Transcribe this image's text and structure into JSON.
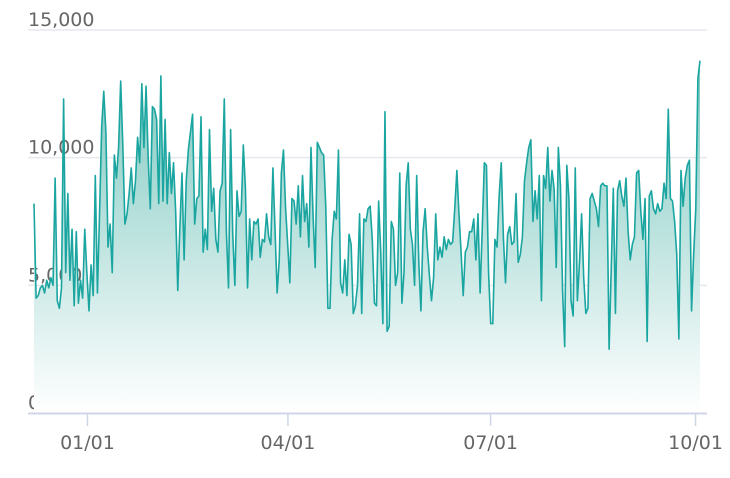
{
  "chart_data": {
    "type": "area",
    "title": "",
    "xlabel": "",
    "ylabel": "",
    "ylim": [
      0,
      15000
    ],
    "y_ticks": [
      {
        "value": 0,
        "label": "0"
      },
      {
        "value": 5000,
        "label": "5,000"
      },
      {
        "value": 10000,
        "label": "10,000"
      },
      {
        "value": 15000,
        "label": "15,000"
      }
    ],
    "x_ticks": [
      {
        "date": "2019-01-01",
        "label": "01/01"
      },
      {
        "date": "2019-04-01",
        "label": "04/01"
      },
      {
        "date": "2019-07-01",
        "label": "07/01"
      },
      {
        "date": "2019-10-01",
        "label": "10/01"
      }
    ],
    "x_range": [
      "2018-12-08",
      "2019-10-03"
    ],
    "grid": true,
    "legend": "none",
    "colors": {
      "line": "#1aa5a0",
      "fill_top": "#7cc7bf",
      "fill_bottom": "#ffffff",
      "grid": "#e6e8ef",
      "axis": "#cfd6e6",
      "tick_label": "#666666"
    },
    "series": [
      {
        "values": [
          8200,
          4500,
          4600,
          4900,
          5000,
          4700,
          5200,
          4900,
          5300,
          5000,
          9200,
          4400,
          4100,
          4900,
          12300,
          5500,
          8600,
          5200,
          7200,
          4200,
          7100,
          4300,
          5200,
          4500,
          7200,
          5500,
          4000,
          5800,
          4600,
          9300,
          4700,
          7800,
          11200,
          12600,
          11000,
          6500,
          7400,
          5500,
          10100,
          9200,
          10400,
          13000,
          10500,
          7400,
          7800,
          8600,
          9600,
          8200,
          9100,
          10800,
          9800,
          12900,
          10400,
          12800,
          10000,
          8000,
          12000,
          11900,
          11500,
          8200,
          13200,
          8300,
          11500,
          8200,
          10200,
          8600,
          9800,
          7900,
          4800,
          7300,
          9400,
          6000,
          9100,
          10300,
          11000,
          11700,
          7400,
          8400,
          8500,
          11600,
          6300,
          7200,
          6400,
          11100,
          7900,
          8800,
          6800,
          6300,
          8700,
          9000,
          12300,
          7100,
          4900,
          11100,
          7000,
          5000,
          8700,
          7700,
          7900,
          10500,
          8800,
          4900,
          7600,
          6000,
          7500,
          7400,
          7600,
          6100,
          6800,
          6700,
          7800,
          6900,
          6600,
          9600,
          7200,
          4700,
          6000,
          9400,
          10300,
          8000,
          6600,
          5100,
          8400,
          8300,
          7400,
          8900,
          6900,
          9300,
          7500,
          8200,
          6500,
          10400,
          7700,
          5700,
          10600,
          10400,
          10200,
          10100,
          8100,
          4100,
          4100,
          6800,
          7900,
          7600,
          10300,
          5100,
          4700,
          6000,
          4600,
          7000,
          6600,
          3900,
          4200,
          5000,
          7800,
          3900,
          7600,
          7500,
          8000,
          8100,
          6800,
          4300,
          4200,
          8300,
          6300,
          3500,
          11800,
          3200,
          3400,
          7500,
          7200,
          5000,
          5500,
          9400,
          4300,
          5500,
          8900,
          9800,
          7200,
          6600,
          5000,
          9300,
          5900,
          4000,
          7100,
          8000,
          6500,
          5400,
          4400,
          5300,
          7800,
          6000,
          6500,
          6100,
          6900,
          6400,
          6800,
          6600,
          6700,
          8000,
          9500,
          7800,
          6300,
          4600,
          6300,
          6500,
          7100,
          7100,
          7600,
          6000,
          7800,
          4700,
          7200,
          9800,
          9700,
          5500,
          3500,
          3500,
          6800,
          6500,
          8500,
          9800,
          6900,
          5100,
          7000,
          7300,
          6600,
          6700,
          8600,
          5900,
          6200,
          6900,
          9100,
          9800,
          10400,
          10700,
          7500,
          8700,
          7600,
          9300,
          4400,
          9300,
          8800,
          10400,
          8300,
          9500,
          8800,
          5700,
          10400,
          8900,
          4800,
          2600,
          9700,
          8400,
          4400,
          3800,
          9600,
          4400,
          5900,
          7800,
          5300,
          3900,
          4100,
          8400,
          8600,
          8300,
          8000,
          7300,
          8900,
          9000,
          8900,
          8900,
          2500,
          5600,
          8800,
          3900,
          8700,
          9100,
          8500,
          8100,
          9200,
          7100,
          6000,
          6600,
          6900,
          9400,
          9500,
          7900,
          6800,
          8400,
          2800,
          8500,
          8700,
          8000,
          7800,
          8200,
          7900,
          8000,
          9000,
          8400,
          11900,
          8400,
          8300,
          7500,
          6200,
          2900,
          9500,
          8100,
          9200,
          9700,
          9900,
          4000,
          6200,
          8000,
          13100,
          13800
        ]
      }
    ]
  }
}
